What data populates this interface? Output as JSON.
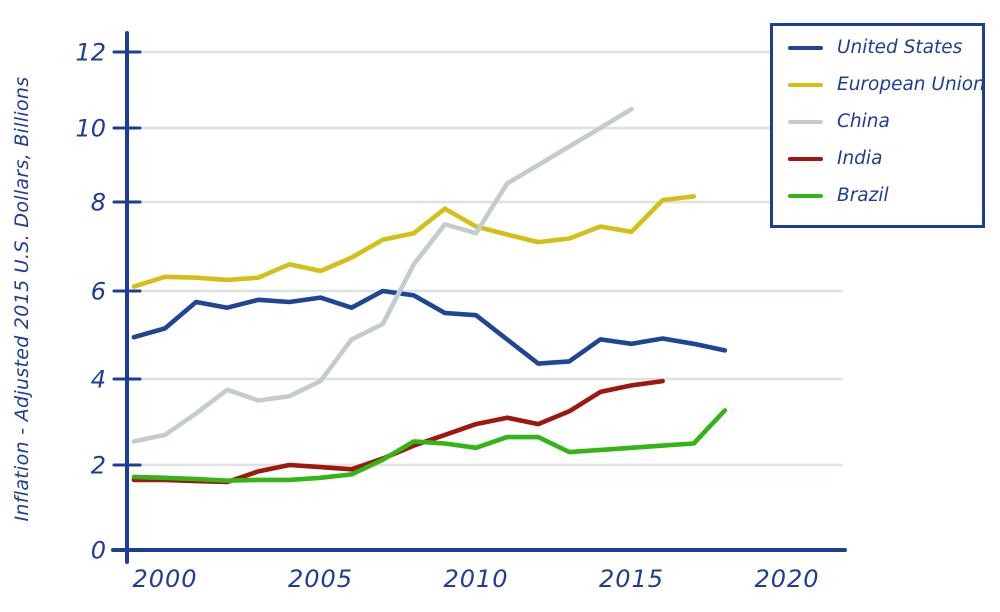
{
  "style": {
    "axis_color": "#1e3d96",
    "text_color": "#1e3d96",
    "grid_color": "#dce3e0",
    "legend_border_color": "#1e3d96",
    "legend_bg": "#ffffff",
    "background": "#ffffff"
  },
  "chart_data": {
    "type": "line",
    "title": "",
    "xlabel": "",
    "ylabel": "Inflation - Adjusted 2015 U.S. Dollars, Billions",
    "ylim": [
      0,
      12
    ],
    "xlim": [
      1999,
      2021
    ],
    "y_ticks": [
      0,
      2,
      4,
      6,
      8,
      10,
      12
    ],
    "x_ticks": [
      2000,
      2005,
      2010,
      2015,
      2020
    ],
    "grid": "horizontal-only",
    "legend_position": "top-right",
    "years": [
      1999,
      2000,
      2001,
      2002,
      2003,
      2004,
      2005,
      2006,
      2007,
      2008,
      2009,
      2010,
      2011,
      2012,
      2013,
      2014,
      2015,
      2016,
      2017,
      2018
    ],
    "series": [
      {
        "name": "United States",
        "color": "#1e4596",
        "start_year": 1999,
        "values": [
          4.95,
          5.15,
          5.75,
          5.62,
          5.8,
          5.75,
          5.85,
          5.62,
          6.0,
          5.9,
          5.5,
          5.45,
          4.9,
          4.35,
          4.4,
          4.9,
          4.8,
          4.92,
          4.8,
          4.65
        ]
      },
      {
        "name": "European Union",
        "color": "#d5bf17",
        "start_year": 1999,
        "values": [
          6.1,
          6.32,
          6.3,
          6.25,
          6.3,
          6.6,
          6.45,
          6.75,
          7.15,
          7.3,
          7.85,
          7.45,
          7.27,
          7.1,
          7.18,
          7.45,
          7.33,
          8.05,
          8.15
        ]
      },
      {
        "name": "China",
        "color": "#c3cccc",
        "start_year": 1999,
        "values": [
          2.55,
          2.7,
          3.2,
          3.75,
          3.5,
          3.6,
          3.95,
          4.9,
          5.25,
          6.6,
          7.5,
          7.3,
          8.5,
          9.0,
          9.5,
          10.0,
          10.5
        ]
      },
      {
        "name": "India",
        "color": "#9e1710",
        "start_year": 1999,
        "values": [
          1.65,
          1.65,
          1.62,
          1.6,
          1.85,
          2.0,
          1.95,
          1.9,
          2.15,
          2.45,
          2.7,
          2.95,
          3.1,
          2.95,
          3.25,
          3.7,
          3.85,
          3.95
        ]
      },
      {
        "name": "Brazil",
        "color": "#33b615",
        "start_year": 1999,
        "values": [
          1.72,
          1.7,
          1.67,
          1.63,
          1.65,
          1.65,
          1.7,
          1.78,
          2.12,
          2.55,
          2.5,
          2.4,
          2.65,
          2.65,
          2.3,
          2.35,
          2.4,
          2.45,
          2.5,
          3.27
        ]
      }
    ]
  }
}
